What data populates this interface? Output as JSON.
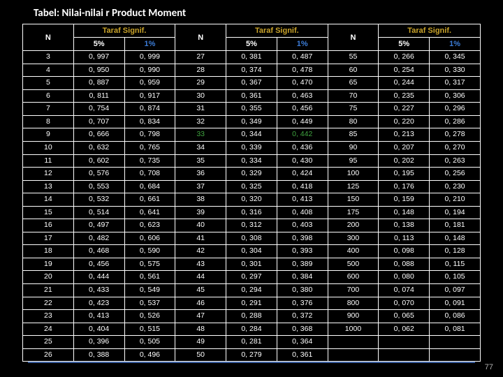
{
  "title": "Tabel: Nilai-nilai  r  Product  Moment",
  "header": {
    "N": "N",
    "taraf": "Taraf Signif.",
    "p5": "5%",
    "p1": "1%"
  },
  "rows": [
    {
      "n1": "3",
      "v1a": "0, 997",
      "v1b": "0, 999",
      "n2": "27",
      "v2a": "0, 381",
      "v2b": "0, 487",
      "n3": "55",
      "v3a": "0, 266",
      "v3b": "0, 345"
    },
    {
      "n1": "4",
      "v1a": "0, 950",
      "v1b": "0, 990",
      "n2": "28",
      "v2a": "0, 374",
      "v2b": "0, 478",
      "n3": "60",
      "v3a": "0, 254",
      "v3b": "0, 330"
    },
    {
      "n1": "5",
      "v1a": "0, 887",
      "v1b": "0, 959",
      "n2": "29",
      "v2a": "0, 367",
      "v2b": "0, 470",
      "n3": "65",
      "v3a": "0, 244",
      "v3b": "0, 317"
    },
    {
      "n1": "6",
      "v1a": "0, 811",
      "v1b": "0, 917",
      "n2": "30",
      "v2a": "0, 361",
      "v2b": "0, 463",
      "n3": "70",
      "v3a": "0, 235",
      "v3b": "0, 306"
    },
    {
      "n1": "7",
      "v1a": "0, 754",
      "v1b": "0, 874",
      "n2": "31",
      "v2a": "0, 355",
      "v2b": "0, 456",
      "n3": "75",
      "v3a": "0, 227",
      "v3b": "0, 296"
    },
    {
      "n1": "8",
      "v1a": "0, 707",
      "v1b": "0, 834",
      "n2": "32",
      "v2a": "0, 349",
      "v2b": "0, 449",
      "n3": "80",
      "v3a": "0, 220",
      "v3b": "0, 286"
    },
    {
      "n1": "9",
      "v1a": "0, 666",
      "v1b": "0, 798",
      "n2": "33",
      "v2a": "0, 344",
      "v2b": "0, 442",
      "n3": "85",
      "v3a": "0, 213",
      "v3b": "0, 278",
      "n2c": "green",
      "v2bc": "green"
    },
    {
      "n1": "10",
      "v1a": "0, 632",
      "v1b": "0, 765",
      "n2": "34",
      "v2a": "0, 339",
      "v2b": "0, 436",
      "n3": "90",
      "v3a": "0, 207",
      "v3b": "0, 270"
    },
    {
      "n1": "11",
      "v1a": "0, 602",
      "v1b": "0, 735",
      "n2": "35",
      "v2a": "0, 334",
      "v2b": "0, 430",
      "n3": "95",
      "v3a": "0, 202",
      "v3b": "0, 263"
    },
    {
      "n1": "12",
      "v1a": "0, 576",
      "v1b": "0, 708",
      "n2": "36",
      "v2a": "0, 329",
      "v2b": "0, 424",
      "n3": "100",
      "v3a": "0, 195",
      "v3b": "0, 256"
    },
    {
      "n1": "13",
      "v1a": "0, 553",
      "v1b": "0, 684",
      "n2": "37",
      "v2a": "0, 325",
      "v2b": "0, 418",
      "n3": "125",
      "v3a": "0, 176",
      "v3b": "0, 230"
    },
    {
      "n1": "14",
      "v1a": "0, 532",
      "v1b": "0, 661",
      "n2": "38",
      "v2a": "0, 320",
      "v2b": "0, 413",
      "n3": "150",
      "v3a": "0, 159",
      "v3b": "0, 210"
    },
    {
      "n1": "15",
      "v1a": "0, 514",
      "v1b": "0, 641",
      "n2": "39",
      "v2a": "0, 316",
      "v2b": "0, 408",
      "n3": "175",
      "v3a": "0, 148",
      "v3b": "0, 194"
    },
    {
      "n1": "16",
      "v1a": "0, 497",
      "v1b": "0, 623",
      "n2": "40",
      "v2a": "0, 312",
      "v2b": "0, 403",
      "n3": "200",
      "v3a": "0, 138",
      "v3b": "0, 181"
    },
    {
      "n1": "17",
      "v1a": "0, 482",
      "v1b": "0, 606",
      "n2": "41",
      "v2a": "0, 308",
      "v2b": "0, 398",
      "n3": "300",
      "v3a": "0, 113",
      "v3b": "0, 148"
    },
    {
      "n1": "18",
      "v1a": "0, 468",
      "v1b": "0, 590",
      "n2": "42",
      "v2a": "0, 304",
      "v2b": "0, 393",
      "n3": "400",
      "v3a": "0, 098",
      "v3b": "0, 128"
    },
    {
      "n1": "19",
      "v1a": "0, 456",
      "v1b": "0, 575",
      "n2": "43",
      "v2a": "0, 301",
      "v2b": "0, 389",
      "n3": "500",
      "v3a": "0, 088",
      "v3b": "0, 115"
    },
    {
      "n1": "20",
      "v1a": "0, 444",
      "v1b": "0, 561",
      "n2": "44",
      "v2a": "0, 297",
      "v2b": "0, 384",
      "n3": "600",
      "v3a": "0, 080",
      "v3b": "0, 105"
    },
    {
      "n1": "21",
      "v1a": "0, 433",
      "v1b": "0, 549",
      "n2": "45",
      "v2a": "0, 294",
      "v2b": "0, 380",
      "n3": "700",
      "v3a": "0, 074",
      "v3b": "0, 097"
    },
    {
      "n1": "22",
      "v1a": "0, 423",
      "v1b": "0, 537",
      "n2": "46",
      "v2a": "0, 291",
      "v2b": "0, 376",
      "n3": "800",
      "v3a": "0, 070",
      "v3b": "0, 091"
    },
    {
      "n1": "23",
      "v1a": "0, 413",
      "v1b": "0, 526",
      "n2": "47",
      "v2a": "0, 288",
      "v2b": "0, 372",
      "n3": "900",
      "v3a": "0, 065",
      "v3b": "0, 086"
    },
    {
      "n1": "24",
      "v1a": "0, 404",
      "v1b": "0, 515",
      "n2": "48",
      "v2a": "0, 284",
      "v2b": "0, 368",
      "n3": "1000",
      "v3a": "0, 062",
      "v3b": "0, 081"
    },
    {
      "n1": "25",
      "v1a": "0, 396",
      "v1b": "0, 505",
      "n2": "49",
      "v2a": "0, 281",
      "v2b": "0, 364",
      "n3": "",
      "v3a": "",
      "v3b": ""
    },
    {
      "n1": "26",
      "v1a": "0, 388",
      "v1b": "0, 496",
      "n2": "50",
      "v2a": "0, 279",
      "v2b": "0, 361",
      "n3": "",
      "v3a": "",
      "v3b": ""
    }
  ],
  "pageNum": "77"
}
